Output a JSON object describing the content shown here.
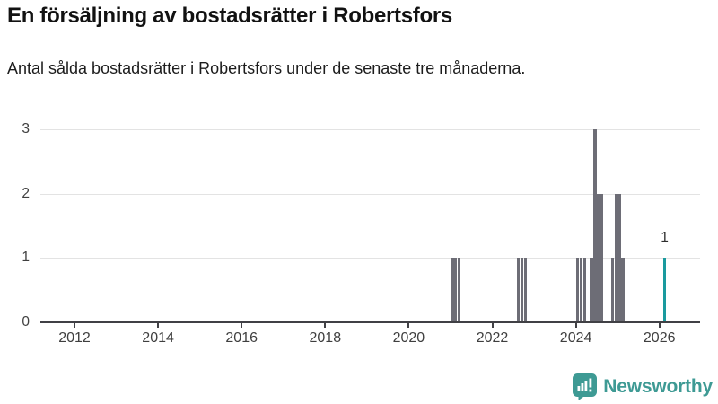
{
  "header": {
    "title": "En försäljning av bostadsrätter i Robertsfors",
    "subtitle": "Antal sålda bostadsrätter i Robertsfors under de senaste tre månaderna."
  },
  "chart_data": {
    "type": "bar",
    "title": "En försäljning av bostadsrätter i Robertsfors",
    "subtitle": "Antal sålda bostadsrätter i Robertsfors under de senaste tre månaderna.",
    "xlabel": "",
    "ylabel": "",
    "x_unit": "month",
    "x_domain": [
      2011.2,
      2027.0
    ],
    "y_domain": [
      0,
      3
    ],
    "x_ticks": [
      2012,
      2014,
      2016,
      2018,
      2020,
      2022,
      2024,
      2026
    ],
    "y_ticks": [
      0,
      1,
      2,
      3
    ],
    "grid": "horizontal",
    "legend": "none",
    "note": "All months not listed have value 0",
    "points": [
      {
        "month": "2021-01",
        "value": 1
      },
      {
        "month": "2021-02",
        "value": 1
      },
      {
        "month": "2021-03",
        "value": 1
      },
      {
        "month": "2022-08",
        "value": 1
      },
      {
        "month": "2022-09",
        "value": 1
      },
      {
        "month": "2022-10",
        "value": 1
      },
      {
        "month": "2024-01",
        "value": 1
      },
      {
        "month": "2024-02",
        "value": 1
      },
      {
        "month": "2024-03",
        "value": 1
      },
      {
        "month": "2024-05",
        "value": 1
      },
      {
        "month": "2024-06",
        "value": 3
      },
      {
        "month": "2024-07",
        "value": 2
      },
      {
        "month": "2024-08",
        "value": 2
      },
      {
        "month": "2024-11",
        "value": 1
      },
      {
        "month": "2024-12",
        "value": 2
      },
      {
        "month": "2025-01",
        "value": 2
      },
      {
        "month": "2025-02",
        "value": 1
      },
      {
        "month": "2026-02",
        "value": 1,
        "highlight": true,
        "label": "1"
      }
    ]
  },
  "colors": {
    "bar": "#6d6d76",
    "highlight": "#1a9a9e",
    "grid": "#e3e3e3",
    "axis": "#404045",
    "tick_text": "#3f3f3f",
    "brand": "#3e9a94"
  },
  "footer": {
    "brand": "Newsworthy"
  }
}
